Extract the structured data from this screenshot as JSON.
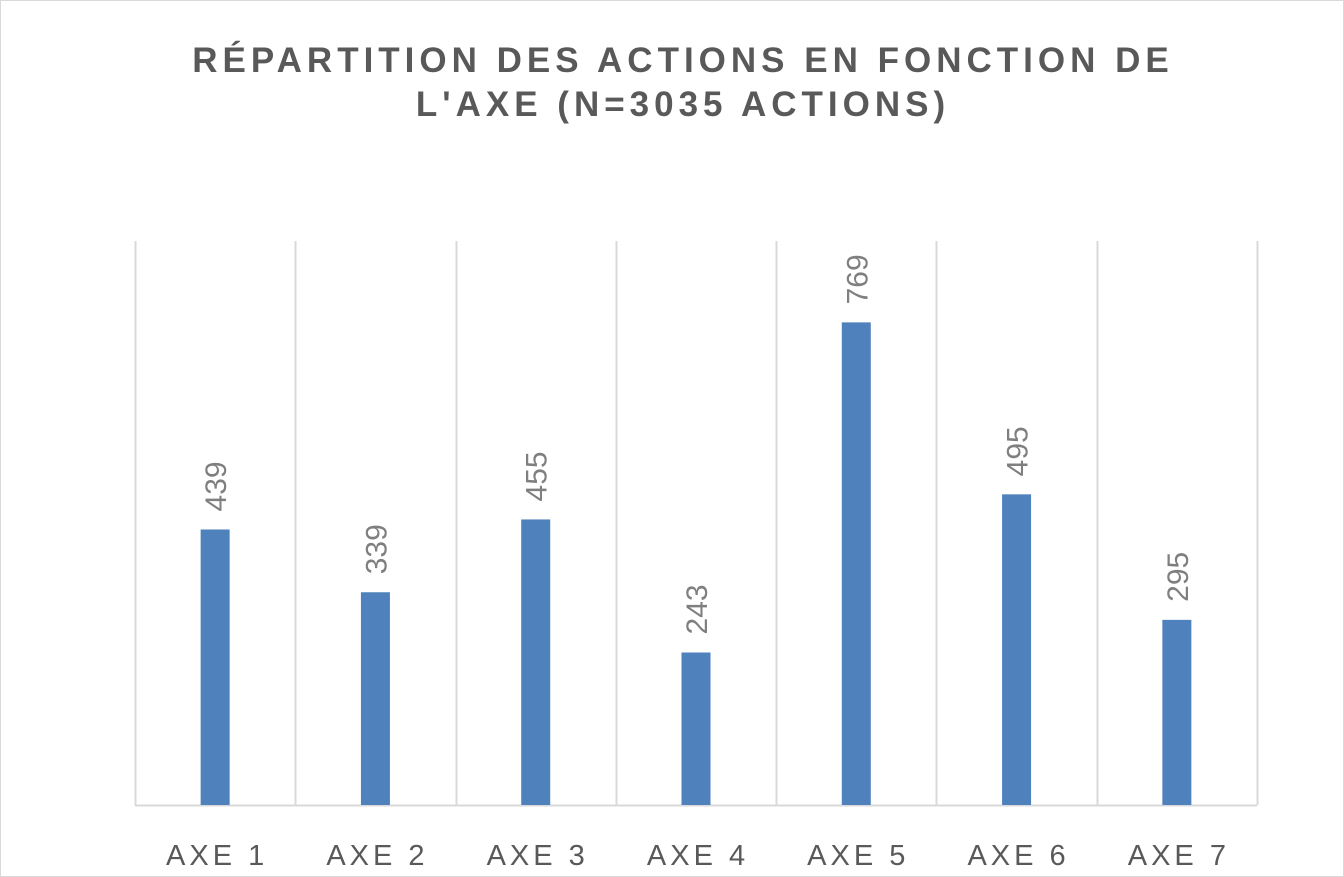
{
  "chart_data": {
    "type": "bar",
    "title": "RÉPARTITION DES ACTIONS EN FONCTION DE L'AXE (N=3035 ACTIONS)",
    "categories": [
      "AXE 1",
      "AXE 2",
      "AXE 3",
      "AXE 4",
      "AXE 5",
      "AXE 6",
      "AXE 7"
    ],
    "values": [
      439,
      339,
      455,
      243,
      769,
      495,
      295
    ],
    "data_labels": [
      "439",
      "339",
      "455",
      "243",
      "769",
      "495",
      "295"
    ],
    "ylim": [
      0,
      900
    ],
    "bar_color": "#4f81bd",
    "gridlines": "vertical",
    "legend": "none"
  }
}
